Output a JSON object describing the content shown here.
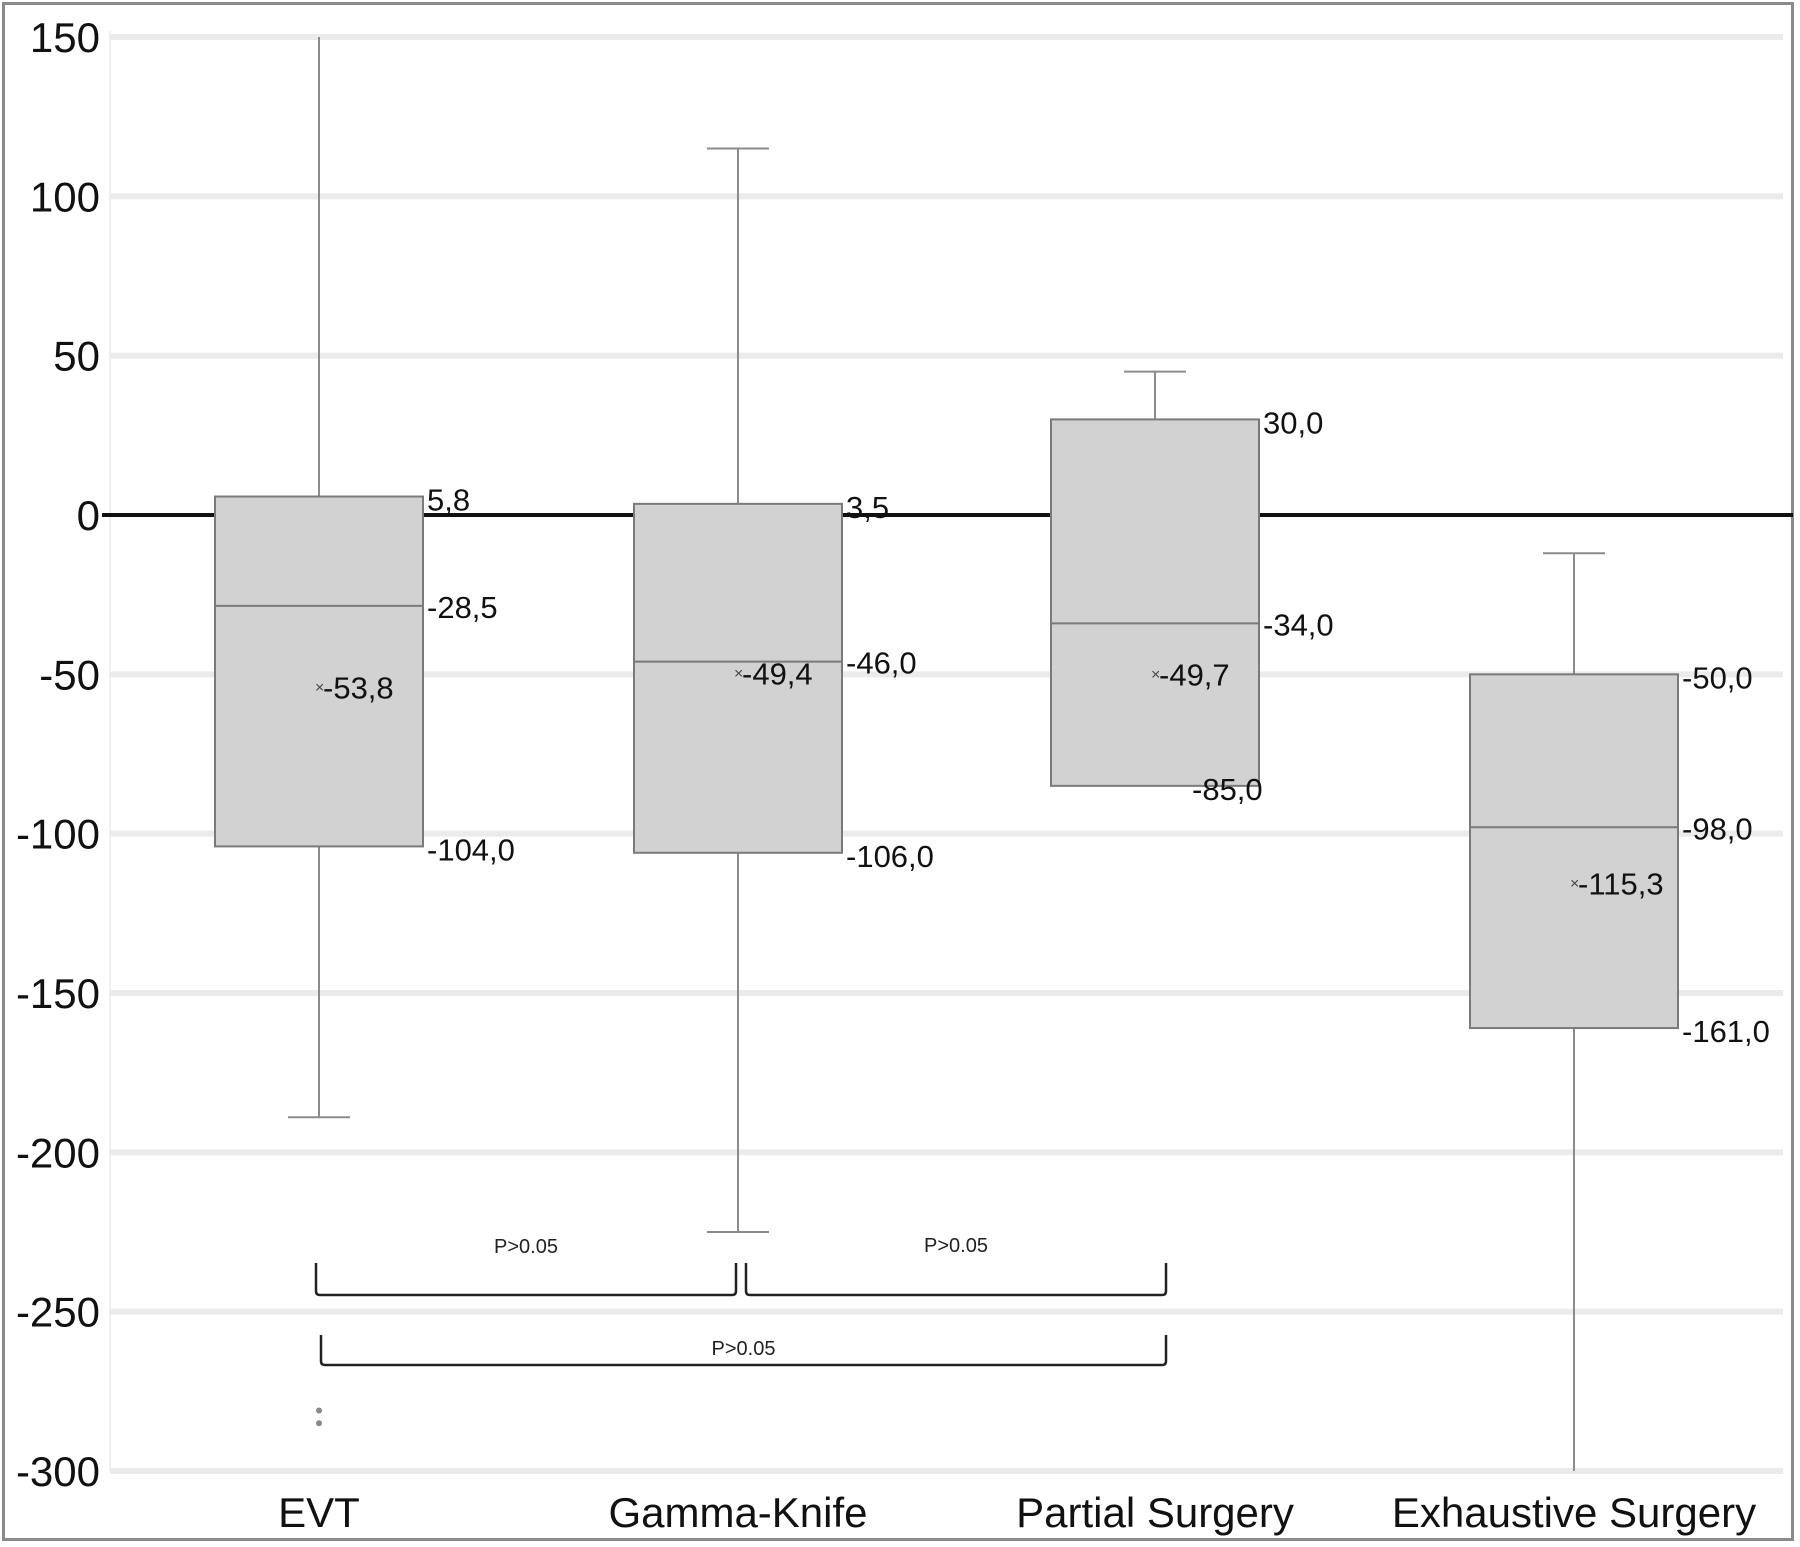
{
  "chart_data": {
    "type": "box",
    "title": "",
    "xlabel": "",
    "ylabel": "",
    "ylim": [
      -300,
      150
    ],
    "yticks": [
      150,
      100,
      50,
      0,
      -50,
      -100,
      -150,
      -200,
      -250,
      -300
    ],
    "ytick_labels": [
      "150",
      "100",
      "50",
      "0",
      "-50",
      "-100",
      "-150",
      "-200",
      "-250",
      "-300"
    ],
    "grid": true,
    "reference_line": 0,
    "categories": [
      "EVT",
      "Gamma-Knife",
      "Partial Surgery",
      "Exhaustive Surgery"
    ],
    "series": [
      {
        "name": "EVT",
        "whisker_high": 150,
        "q3": 5.8,
        "median": -28.5,
        "mean": -53.8,
        "q1": -104.0,
        "whisker_low": -189,
        "outliers": [
          -281,
          -285
        ],
        "labels": {
          "q3": "5,8",
          "median": "-28,5",
          "mean": "-53,8",
          "q1": "-104,0"
        },
        "whisker_high_cap": false,
        "whisker_low_cap": true
      },
      {
        "name": "Gamma-Knife",
        "whisker_high": 115,
        "q3": 3.5,
        "median": -46.0,
        "mean": -49.4,
        "q1": -106.0,
        "whisker_low": -225,
        "outliers": [],
        "labels": {
          "q3": "3,5",
          "median": "-46,0",
          "mean": "-49,4",
          "q1": "-106,0"
        },
        "whisker_high_cap": true,
        "whisker_low_cap": true
      },
      {
        "name": "Partial Surgery",
        "whisker_high": 45,
        "q3": 30.0,
        "median": -34.0,
        "mean": -49.7,
        "q1": -85.0,
        "whisker_low": -85.0,
        "outliers": [],
        "labels": {
          "q3": "30,0",
          "median": "-34,0",
          "mean": "-49,7",
          "q1": "-85,0"
        },
        "whisker_high_cap": true,
        "whisker_low_cap": false
      },
      {
        "name": "Exhaustive Surgery",
        "whisker_high": -12,
        "q3": -50.0,
        "median": -98.0,
        "mean": -115.3,
        "q1": -161.0,
        "whisker_low": -300,
        "outliers": [],
        "labels": {
          "q3": "-50,0",
          "median": "-98,0",
          "mean": "-115,3",
          "q1": "-161,0"
        },
        "whisker_high_cap": true,
        "whisker_low_cap": false
      }
    ],
    "significance": [
      {
        "from": "EVT",
        "to": "Gamma-Knife",
        "label": "P>0.05",
        "level": 1
      },
      {
        "from": "Gamma-Knife",
        "to": "Partial Surgery",
        "label": "P>0.05",
        "level": 1
      },
      {
        "from": "EVT",
        "to": "Partial Surgery",
        "label": "P>0.05",
        "level": 2
      }
    ],
    "colors": {
      "box_fill": "#d2d2d2",
      "box_stroke": "#7a7a7a",
      "whisker": "#8c8c8c",
      "grid": "#ebebeb",
      "zero_line": "#111111",
      "bracket": "#222222"
    }
  }
}
